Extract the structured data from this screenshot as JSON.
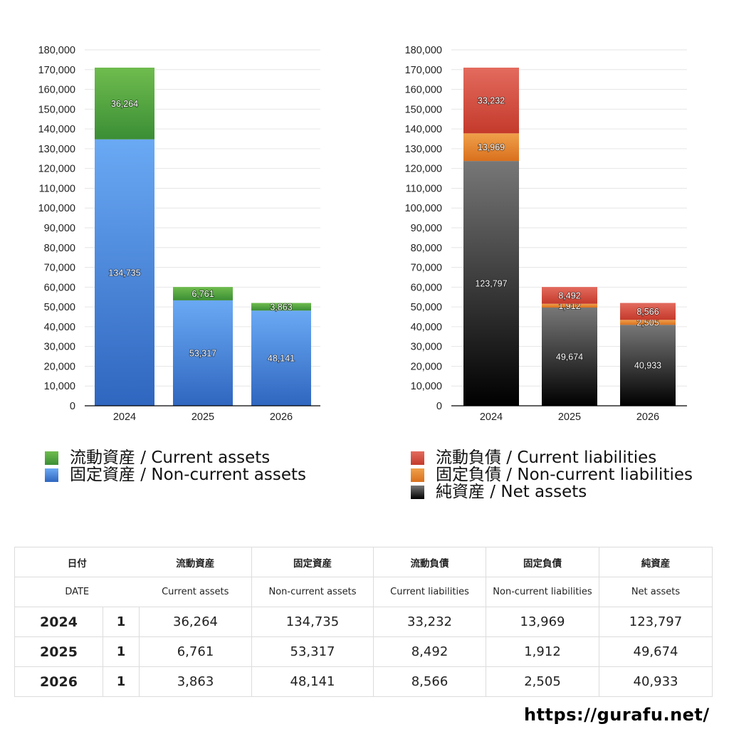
{
  "chart_data": [
    {
      "type": "bar",
      "stacked": true,
      "categories": [
        "2024",
        "2025",
        "2026"
      ],
      "ylim": [
        0,
        180000
      ],
      "yticks": [
        "0",
        "10,000",
        "20,000",
        "30,000",
        "40,000",
        "50,000",
        "60,000",
        "70,000",
        "80,000",
        "90,000",
        "100,000",
        "110,000",
        "120,000",
        "130,000",
        "140,000",
        "150,000",
        "160,000",
        "170,000",
        "180,000"
      ],
      "grid": true,
      "legend_position": "bottom",
      "series": [
        {
          "name": "固定資産 / Non-current assets",
          "values": [
            134735,
            53317,
            48141
          ],
          "labels": [
            "134,735",
            "53,317",
            "48,141"
          ],
          "color_top": "#6aa9f4",
          "color_bottom": "#2f66bf"
        },
        {
          "name": "流動資産 / Current assets",
          "values": [
            36264,
            6761,
            3863
          ],
          "labels": [
            "36,264",
            "6,761",
            "3,863"
          ],
          "color_top": "#6fbc4e",
          "color_bottom": "#3b8e35"
        }
      ],
      "legend": [
        "流動資産 / Current assets",
        "固定資産 / Non-current assets"
      ]
    },
    {
      "type": "bar",
      "stacked": true,
      "categories": [
        "2024",
        "2025",
        "2026"
      ],
      "ylim": [
        0,
        180000
      ],
      "yticks": [
        "0",
        "10,000",
        "20,000",
        "30,000",
        "40,000",
        "50,000",
        "60,000",
        "70,000",
        "80,000",
        "90,000",
        "100,000",
        "110,000",
        "120,000",
        "130,000",
        "140,000",
        "150,000",
        "160,000",
        "170,000",
        "180,000"
      ],
      "grid": true,
      "legend_position": "bottom",
      "series": [
        {
          "name": "純資産 / Net assets",
          "values": [
            123797,
            49674,
            40933
          ],
          "labels": [
            "123,797",
            "49,674",
            "40,933"
          ],
          "color_top": "#777777",
          "color_bottom": "#000000"
        },
        {
          "name": "固定負債 / Non-current liabilities",
          "values": [
            13969,
            1912,
            2505
          ],
          "labels": [
            "13,969",
            "1,912",
            "2,505"
          ],
          "color_top": "#f0a04a",
          "color_bottom": "#d9701e"
        },
        {
          "name": "流動負債 / Current liabilities",
          "values": [
            33232,
            8492,
            8566
          ],
          "labels": [
            "33,232",
            "8,492",
            "8,566"
          ],
          "color_top": "#e36b5e",
          "color_bottom": "#c43a2b"
        }
      ],
      "legend": [
        "流動負債 / Current liabilities",
        "固定負債 / Non-current liabilities",
        "純資産 / Net assets"
      ]
    }
  ],
  "legend_left": [
    {
      "label": "流動資産 / Current assets",
      "color": "#4ea442"
    },
    {
      "label": "固定資産 / Non-current assets",
      "color": "#3f80d9"
    }
  ],
  "legend_right": [
    {
      "label": "流動負債 / Current liabilities",
      "color": "#d44a3a"
    },
    {
      "label": "固定負債 / Non-current liabilities",
      "color": "#e9872f"
    },
    {
      "label": "純資産 / Net assets",
      "color": "#2a2a2a"
    }
  ],
  "table": {
    "header_jp": [
      "日付",
      "流動資産",
      "固定資産",
      "流動負債",
      "固定負債",
      "純資産"
    ],
    "header_en": [
      "DATE",
      "Current assets",
      "Non-current assets",
      "Current liabilities",
      "Non-current liabilities",
      "Net assets"
    ],
    "rows": [
      {
        "year": "2024",
        "count": "1",
        "values": [
          "36,264",
          "134,735",
          "33,232",
          "13,969",
          "123,797"
        ]
      },
      {
        "year": "2025",
        "count": "1",
        "values": [
          "6,761",
          "53,317",
          "8,492",
          "1,912",
          "49,674"
        ]
      },
      {
        "year": "2026",
        "count": "1",
        "values": [
          "3,863",
          "48,141",
          "8,566",
          "2,505",
          "40,933"
        ]
      }
    ]
  },
  "footer": {
    "url": "https://gurafu.net/"
  }
}
